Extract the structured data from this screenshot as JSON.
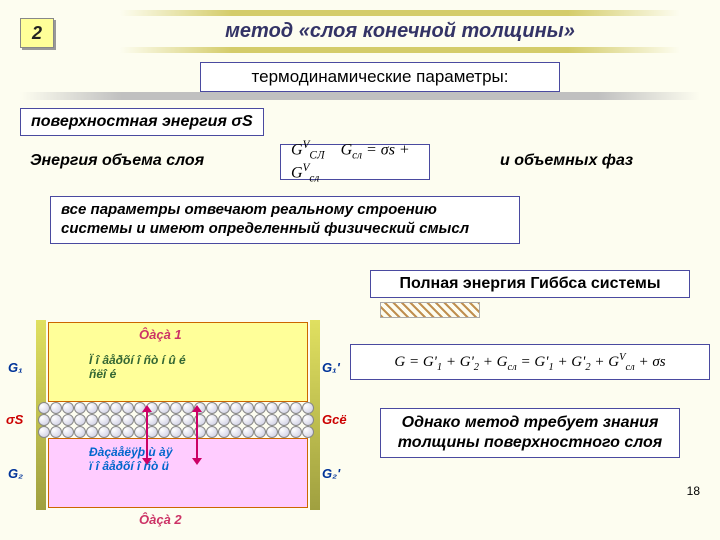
{
  "slide": {
    "number": "2",
    "title": "метод «слоя конечной толщины»",
    "subtitle": "термодинамические параметры:",
    "surface_energy": "поверхностная энергия σS",
    "volume_energy": "Энергия объема слоя",
    "volume_phases": "и объемных фаз",
    "description": "все параметры отвечают реальному строению системы и имеют определенный физический смысл",
    "gibbs_title": "Полная энергия Гиббса системы",
    "however": "Однако метод требует знания толщины поверхностного слоя",
    "page_number": "18"
  },
  "formulas": {
    "f1_html": "G<sup>V</sup><sub>СЛ</sub>&nbsp;&nbsp;&nbsp; G<sub>сл</sub> = σs + G<sup>V</sup><sub>сл</sub>",
    "f2_html": "G = G'<sub>1</sub> + G'<sub>2</sub> + G<sub>сл</sub> = G'<sub>1</sub> + G'<sub>2</sub> + G<sup>V</sup><sub>сл</sub> + σs"
  },
  "diagram": {
    "phase1_label": "Ôàçà 1",
    "phase2_label": "Ôàçà 2",
    "surf_text": "Ï î âåðõí î ñò í û é\nñëî é",
    "bulk_text": "Ðàçäåëÿþ ù àÿ\nï î âåðõí î ñò ü",
    "g1": "G₁",
    "g1p": "G₁'",
    "g2": "G₂",
    "g2p": "G₂'",
    "gsl": "Gсё",
    "sigma_s": "σS",
    "colors": {
      "phase1_bg": "#ffff99",
      "phase2_bg": "#ffccff",
      "border": "#cc6600",
      "arrow": "#cc0066"
    }
  },
  "styling": {
    "page_bg": "#fdfdf0",
    "box_border": "#4a4aa0",
    "title_bar_color": "#d4cc6a",
    "gray_bar_color": "#c0c0c0",
    "title_fontsize": 20,
    "body_fontsize": 16,
    "label_fontsize": 13
  }
}
